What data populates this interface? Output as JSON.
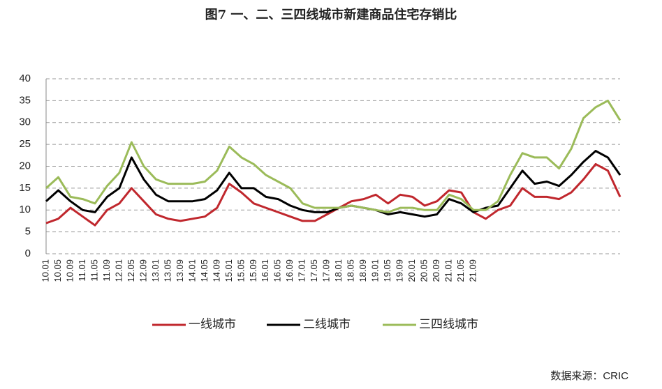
{
  "chart_data": {
    "type": "line",
    "title": "图7  一、二、三四线城市新建商品住宅存销比",
    "source": "数据来源：CRIC",
    "categories": [
      "10.01",
      "10.05",
      "10.09",
      "11.01",
      "11.05",
      "11.09",
      "12.01",
      "12.05",
      "12.09",
      "13.01",
      "13.05",
      "13.09",
      "14.01",
      "14.05",
      "14.09",
      "15.01",
      "15.05",
      "15.09",
      "16.01",
      "16.05",
      "16.09",
      "17.01",
      "17.05",
      "17.09",
      "18.01",
      "18.05",
      "18.09",
      "19.01",
      "19.05",
      "19.09",
      "20.01",
      "20.05",
      "20.09",
      "21.01",
      "21.05",
      "21.09",
      null,
      null,
      null,
      null,
      null,
      null,
      null,
      null,
      null,
      null,
      null,
      null
    ],
    "series": [
      {
        "name": "一线城市",
        "color": "#c0272d",
        "values": [
          7,
          8,
          10.5,
          8.5,
          6.5,
          10,
          11.5,
          15,
          12,
          9,
          8,
          7.5,
          8,
          8.5,
          10.5,
          16,
          14,
          11.5,
          10.5,
          9.5,
          8.5,
          7.5,
          7.5,
          9,
          10.5,
          12,
          12.5,
          13.5,
          11.5,
          13.5,
          13,
          11,
          12,
          14.5,
          14,
          9.5,
          8,
          10,
          11,
          15,
          13,
          13,
          12.5,
          14,
          17,
          20.5,
          19,
          13
        ]
      },
      {
        "name": "二线城市",
        "color": "#000000",
        "values": [
          12,
          14.5,
          12,
          10,
          9.5,
          13,
          15,
          22,
          17,
          13.5,
          12,
          12,
          12,
          12.5,
          14.5,
          18.5,
          15,
          15,
          13,
          12.5,
          11,
          10,
          9.5,
          9.5,
          10.5,
          11,
          10.5,
          10,
          9,
          9.5,
          9,
          8.5,
          9,
          12.5,
          11.5,
          9.5,
          10.5,
          11,
          15,
          19,
          16,
          16.5,
          15.5,
          18,
          21,
          23.5,
          22,
          18
        ]
      },
      {
        "name": "三四线城市",
        "color": "#9bbb59",
        "values": [
          15,
          17.5,
          13,
          12.5,
          11.5,
          15.5,
          18.5,
          25.5,
          20,
          17,
          16,
          16,
          16,
          16.5,
          19,
          24.5,
          22,
          20.5,
          18,
          16.5,
          15,
          11.5,
          10.5,
          10.5,
          10.5,
          11,
          10.5,
          10,
          9.5,
          10.5,
          10.5,
          10,
          10,
          13.5,
          12.5,
          10,
          10,
          12,
          18,
          23,
          22,
          22,
          19.5,
          24,
          31,
          33.5,
          35,
          30.5
        ]
      }
    ],
    "ylim": [
      0,
      40
    ],
    "yticks": [
      0,
      5,
      10,
      15,
      20,
      25,
      30,
      35,
      40
    ],
    "grid": true,
    "legend": "bottom"
  }
}
